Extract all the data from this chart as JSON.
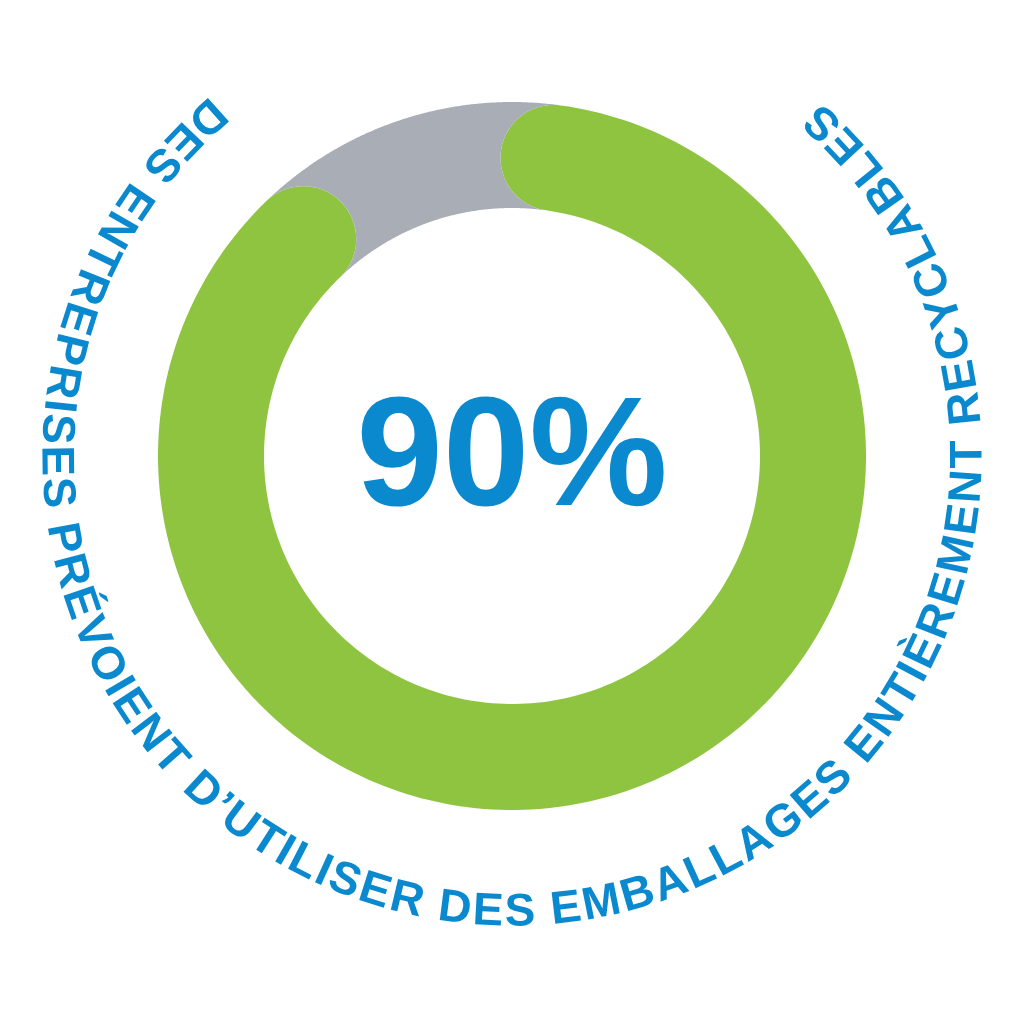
{
  "chart_data": {
    "type": "donut",
    "title": "DES ENTREPRISES PRÉVOIENT D’UTILISER DES EMBALLAGES ENTIÈREMENT RECYCLABLES",
    "categories": [
      null,
      null
    ],
    "values": [
      90,
      10
    ],
    "colors": [
      "#8fc440",
      "#a9adb5"
    ],
    "value_labels": [
      "90%",
      null
    ]
  }
}
